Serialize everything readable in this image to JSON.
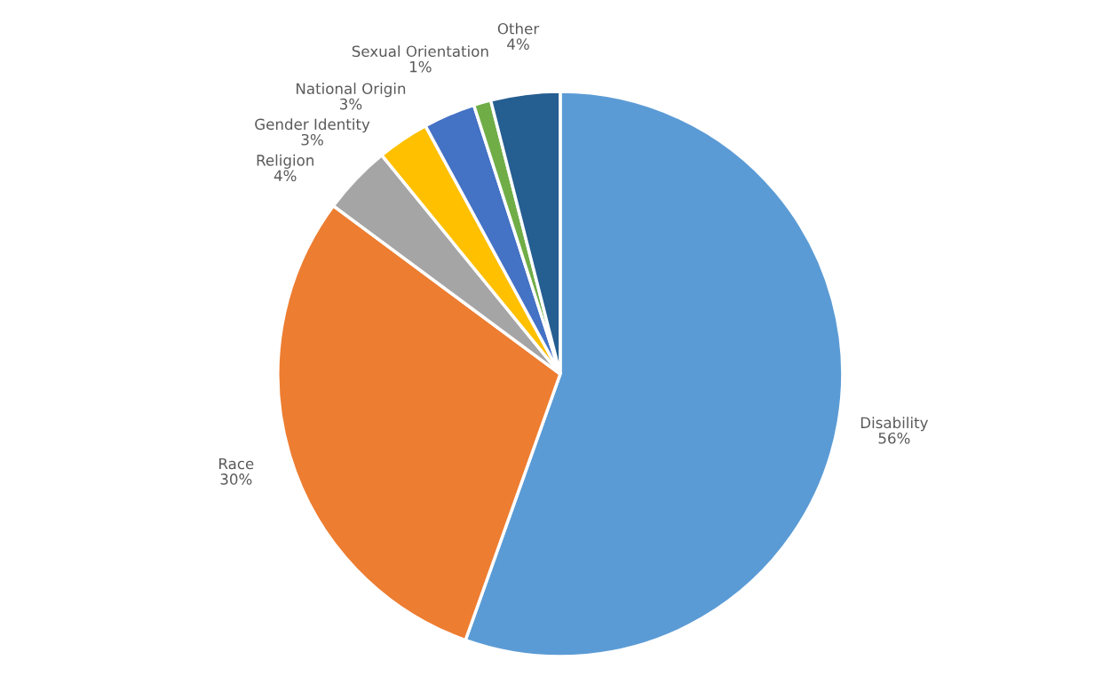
{
  "chart_data": {
    "type": "pie",
    "categories": [
      "Disability",
      "Race",
      "Religion",
      "Gender Identity",
      "National Origin",
      "Sexual Orientation",
      "Other"
    ],
    "values": [
      56,
      30,
      4,
      3,
      3,
      1,
      4
    ],
    "value_labels": [
      "56%",
      "30%",
      "4%",
      "3%",
      "3%",
      "1%",
      "4%"
    ],
    "colors": [
      "#5b9bd5",
      "#ed7d31",
      "#a5a5a5",
      "#ffc000",
      "#4472c4",
      "#70ad47",
      "#255e91"
    ],
    "legend": false
  }
}
